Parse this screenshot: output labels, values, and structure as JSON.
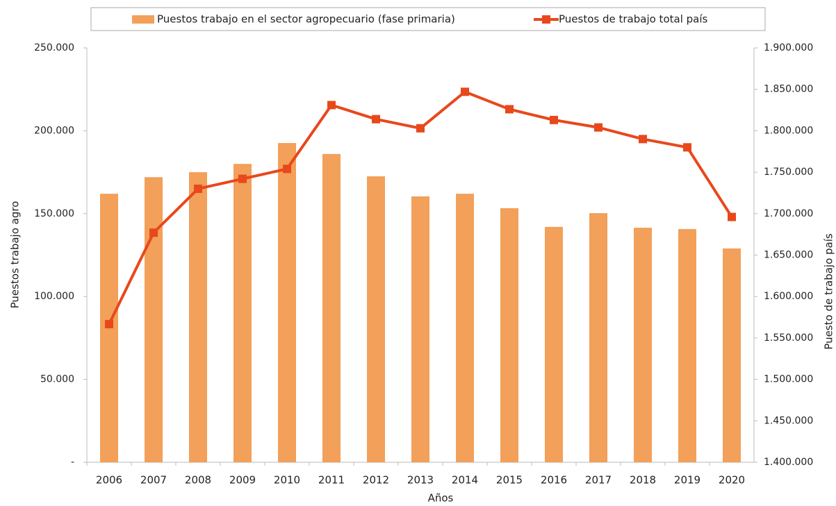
{
  "chart_data": {
    "type": "bar",
    "xlabel": "Años",
    "ylabel": "Puestos trabajo agro",
    "y2label": "Puesto de trabajo país",
    "categories": [
      "2006",
      "2007",
      "2008",
      "2009",
      "2010",
      "2011",
      "2012",
      "2013",
      "2014",
      "2015",
      "2016",
      "2017",
      "2018",
      "2019",
      "2020"
    ],
    "series": [
      {
        "name": "Puestos trabajo en el sector agropecuario (fase primaria)",
        "type": "bar",
        "color": "#f2a05a",
        "values": [
          162000,
          172000,
          175000,
          180000,
          192600,
          186000,
          172500,
          160400,
          162000,
          153300,
          142000,
          150300,
          141500,
          140700,
          129000
        ]
      },
      {
        "name": "Puestos de trabajo total país",
        "type": "line",
        "axis": "y2",
        "color": "#e8481c",
        "values": [
          1566700,
          1677000,
          1730000,
          1742000,
          1754000,
          1831000,
          1814000,
          1803000,
          1847000,
          1826000,
          1813000,
          1804000,
          1790000,
          1780000,
          1696000
        ]
      }
    ],
    "ylim": [
      0,
      250000
    ],
    "yticks": [
      {
        "value": 0,
        "label": "-"
      },
      {
        "value": 50000,
        "label": "50.000"
      },
      {
        "value": 100000,
        "label": "100.000"
      },
      {
        "value": 150000,
        "label": "150.000"
      },
      {
        "value": 200000,
        "label": "200.000"
      },
      {
        "value": 250000,
        "label": "250.000"
      }
    ],
    "y2lim": [
      1400000,
      1900000
    ],
    "y2ticks": [
      {
        "value": 1400000,
        "label": "1.400.000"
      },
      {
        "value": 1450000,
        "label": "1.450.000"
      },
      {
        "value": 1500000,
        "label": "1.500.000"
      },
      {
        "value": 1550000,
        "label": "1.550.000"
      },
      {
        "value": 1600000,
        "label": "1.600.000"
      },
      {
        "value": 1650000,
        "label": "1.650.000"
      },
      {
        "value": 1700000,
        "label": "1.700.000"
      },
      {
        "value": 1750000,
        "label": "1.750.000"
      },
      {
        "value": 1800000,
        "label": "1.800.000"
      },
      {
        "value": 1850000,
        "label": "1.850.000"
      },
      {
        "value": 1900000,
        "label": "1.900.000"
      }
    ],
    "legend": "top",
    "grid": false
  }
}
